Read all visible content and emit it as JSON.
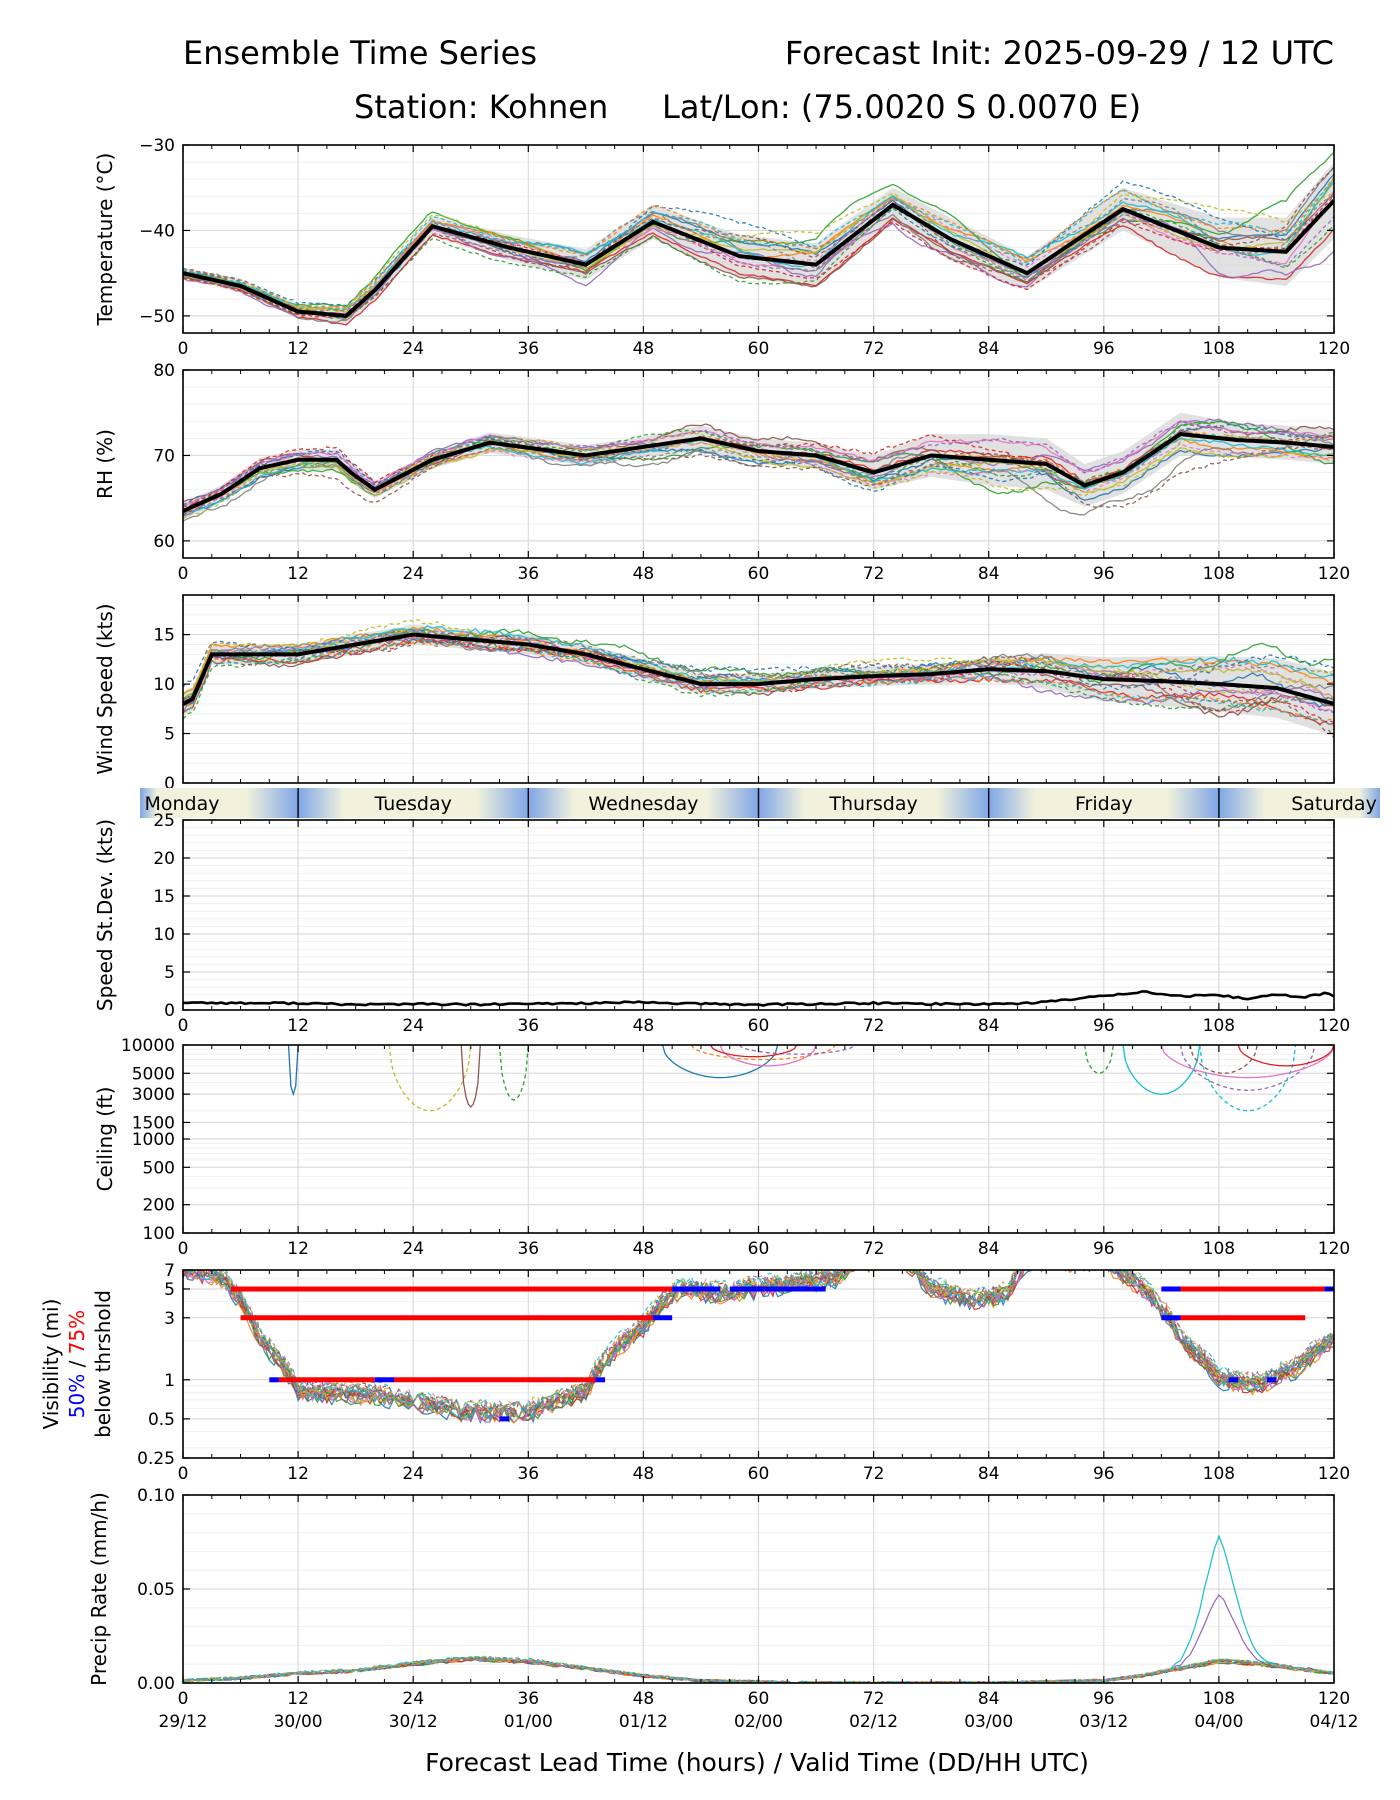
{
  "header": {
    "title_left": "Ensemble Time Series",
    "title_right": "Forecast Init: 2025-09-29 / 12 UTC",
    "station": "Station: Kohnen",
    "latlon": "Lat/Lon: (75.0020 S 0.0070 E)"
  },
  "colors": {
    "members": [
      "#1f77b4",
      "#ff7f0e",
      "#2ca02c",
      "#d62728",
      "#9467bd",
      "#8c564b",
      "#e377c2",
      "#7f7f7f",
      "#bcbd22",
      "#17becf"
    ],
    "mean": "#000000",
    "spread": "#d9d9d9",
    "vis_50": "#0000ff",
    "vis_75": "#ff0000",
    "day_band_light": "#f2f2dc",
    "day_band_dark": "#7fa6e6"
  },
  "chart_data": [
    {
      "type": "line",
      "name": "temperature",
      "ylabel": "Temperature (°C)",
      "ylim": [
        -52,
        -30
      ],
      "yticks": [
        -50,
        -40,
        -30
      ],
      "yticklabels": [
        "−50",
        "−40",
        "−30"
      ],
      "x": [
        0,
        6,
        12,
        17,
        20,
        26,
        34,
        42,
        49,
        58,
        66,
        74,
        80,
        88,
        98,
        108,
        115,
        120
      ],
      "mean": [
        -45,
        -46.5,
        -49.5,
        -50,
        -47,
        -39.5,
        -42,
        -44,
        -39,
        -43,
        -44,
        -37,
        -41,
        -45,
        -37.5,
        -42,
        -42.5,
        -36.5
      ],
      "spread": [
        0.6,
        0.8,
        0.8,
        1,
        1.2,
        1.2,
        1.5,
        1.8,
        2,
        2.5,
        2.5,
        2,
        2.5,
        2,
        2.5,
        3.5,
        4,
        4.5
      ]
    },
    {
      "type": "line",
      "name": "relative_humidity",
      "ylabel": "RH (%)",
      "ylim": [
        58,
        80
      ],
      "yticks": [
        60,
        70,
        80
      ],
      "x": [
        0,
        4,
        8,
        12,
        16,
        17.5,
        20,
        26,
        32,
        42,
        48,
        54,
        60,
        66,
        72,
        78,
        84,
        90,
        94,
        98,
        104,
        110,
        115,
        120
      ],
      "mean": [
        63.5,
        65.5,
        68.5,
        69.5,
        69.5,
        68,
        66,
        69.5,
        71.5,
        70,
        71,
        72,
        70.5,
        70,
        68,
        70,
        69.5,
        69,
        66.5,
        68,
        72.5,
        71.8,
        71.5,
        71
      ],
      "spread": [
        1,
        1,
        1.2,
        1.2,
        1.2,
        1.2,
        1,
        1,
        1.2,
        1.2,
        1.2,
        1.5,
        1.5,
        1.5,
        2,
        2.5,
        3,
        3,
        2.5,
        2.5,
        2.5,
        2,
        2,
        2
      ]
    },
    {
      "type": "line",
      "name": "wind_speed",
      "ylabel": "Wind Speed (kts)",
      "ylim": [
        0,
        19
      ],
      "yticks": [
        0,
        5,
        10,
        15
      ],
      "x": [
        0,
        1,
        3,
        6,
        12,
        18,
        24,
        30,
        36,
        42,
        48,
        54,
        60,
        66,
        72,
        78,
        84,
        90,
        96,
        102,
        108,
        114,
        120
      ],
      "mean": [
        8,
        8.5,
        13,
        13,
        13,
        14,
        15,
        14.5,
        14,
        13,
        11.5,
        10,
        10,
        10.5,
        10.8,
        11,
        11.5,
        11.3,
        10.5,
        10.3,
        10,
        9.6,
        8
      ],
      "spread": [
        1.2,
        1.2,
        1,
        1,
        1,
        1,
        1,
        1,
        1,
        1,
        1,
        1,
        1,
        1,
        1,
        1,
        1.2,
        1.8,
        2.2,
        2.5,
        2.8,
        3,
        3.2
      ]
    },
    {
      "type": "line",
      "name": "speed_std_dev",
      "ylabel": "Speed St.Dev. (kts)",
      "ylim": [
        0,
        25
      ],
      "yticks": [
        0,
        5,
        10,
        15,
        20,
        25
      ],
      "day_bands": [
        "Monday",
        "Tuesday",
        "Wednesday",
        "Thursday",
        "Friday",
        "Saturday"
      ],
      "x": [
        0,
        6,
        12,
        18,
        24,
        30,
        36,
        42,
        48,
        54,
        60,
        66,
        72,
        78,
        84,
        88,
        92,
        96,
        100,
        104,
        108,
        111,
        114,
        117,
        119,
        120
      ],
      "mean": [
        1,
        0.9,
        0.9,
        0.7,
        0.8,
        0.7,
        0.8,
        0.9,
        1,
        0.8,
        0.7,
        0.8,
        0.9,
        0.8,
        0.8,
        0.9,
        1.3,
        1.9,
        2.4,
        1.8,
        1.9,
        1.5,
        2,
        1.7,
        2.2,
        1.8
      ]
    },
    {
      "type": "line",
      "name": "ceiling",
      "ylabel": "Ceiling (ft)",
      "yscale": "log",
      "ylim": [
        100,
        10000
      ],
      "yticks": [
        100,
        200,
        500,
        1000,
        1500,
        3000,
        5000,
        10000
      ]
    },
    {
      "type": "line",
      "name": "visibility",
      "ylabel": "Visibility (mi)",
      "ylabel_50": "50%",
      "ylabel_sep": " / ",
      "ylabel_75": "75%",
      "ylabel_threshold": "below thrshold",
      "yscale": "log",
      "ylim": [
        0.25,
        7
      ],
      "yticks": [
        0.25,
        0.5,
        1,
        3,
        5,
        7
      ],
      "thresholds": [
        {
          "level": 5,
          "segments_75": [
            [
              5,
              51
            ],
            [
              104,
              119
            ]
          ],
          "segments_50": [
            [
              51,
              56
            ],
            [
              57,
              67
            ],
            [
              102,
              104
            ],
            [
              119,
              120
            ]
          ]
        },
        {
          "level": 3,
          "segments_75": [
            [
              6,
              49
            ],
            [
              104,
              117
            ]
          ],
          "segments_50": [
            [
              49,
              51
            ],
            [
              102,
              104
            ]
          ]
        },
        {
          "level": 1,
          "segments_75": [
            [
              10,
              20
            ],
            [
              22,
              43
            ]
          ],
          "segments_50": [
            [
              9,
              10
            ],
            [
              20,
              22
            ],
            [
              43,
              44
            ],
            [
              109,
              110
            ],
            [
              113,
              114
            ]
          ]
        },
        {
          "level": 0.5,
          "segments_75": [],
          "segments_50": [
            [
              33,
              34
            ]
          ]
        }
      ]
    },
    {
      "type": "line",
      "name": "precip_rate",
      "ylabel": "Precip Rate (mm/h)",
      "ylim": [
        0,
        0.1
      ],
      "yticks": [
        0,
        0.05,
        0.1
      ],
      "yticklabels": [
        "0.00",
        "0.05",
        "0.10"
      ],
      "x": [
        0,
        6,
        12,
        18,
        24,
        30,
        36,
        42,
        48,
        54,
        60,
        66,
        72,
        84,
        96,
        100,
        104,
        108,
        112,
        116,
        120
      ],
      "mean": [
        0.001,
        0.002,
        0.004,
        0.005,
        0.008,
        0.01,
        0.009,
        0.006,
        0.003,
        0.001,
        0.0005,
        0,
        0,
        0,
        0.001,
        0.003,
        0.006,
        0.009,
        0.008,
        0.006,
        0.004
      ],
      "spread": [
        0.002,
        0.002,
        0.004,
        0.005,
        0.007,
        0.008,
        0.008,
        0.006,
        0.004,
        0.002,
        0.001,
        0,
        0,
        0,
        0.002,
        0.006,
        0.012,
        0.03,
        0.015,
        0.01,
        0.006
      ]
    }
  ],
  "xaxis": {
    "label": "Forecast Lead Time (hours) / Valid Time (DD/HH UTC)",
    "range": [
      0,
      120
    ],
    "ticks": [
      0,
      12,
      24,
      36,
      48,
      60,
      72,
      84,
      96,
      108,
      120
    ],
    "valid_labels": [
      "29/12",
      "30/00",
      "30/12",
      "01/00",
      "01/12",
      "02/00",
      "02/12",
      "03/00",
      "03/12",
      "04/00",
      "04/12"
    ]
  }
}
